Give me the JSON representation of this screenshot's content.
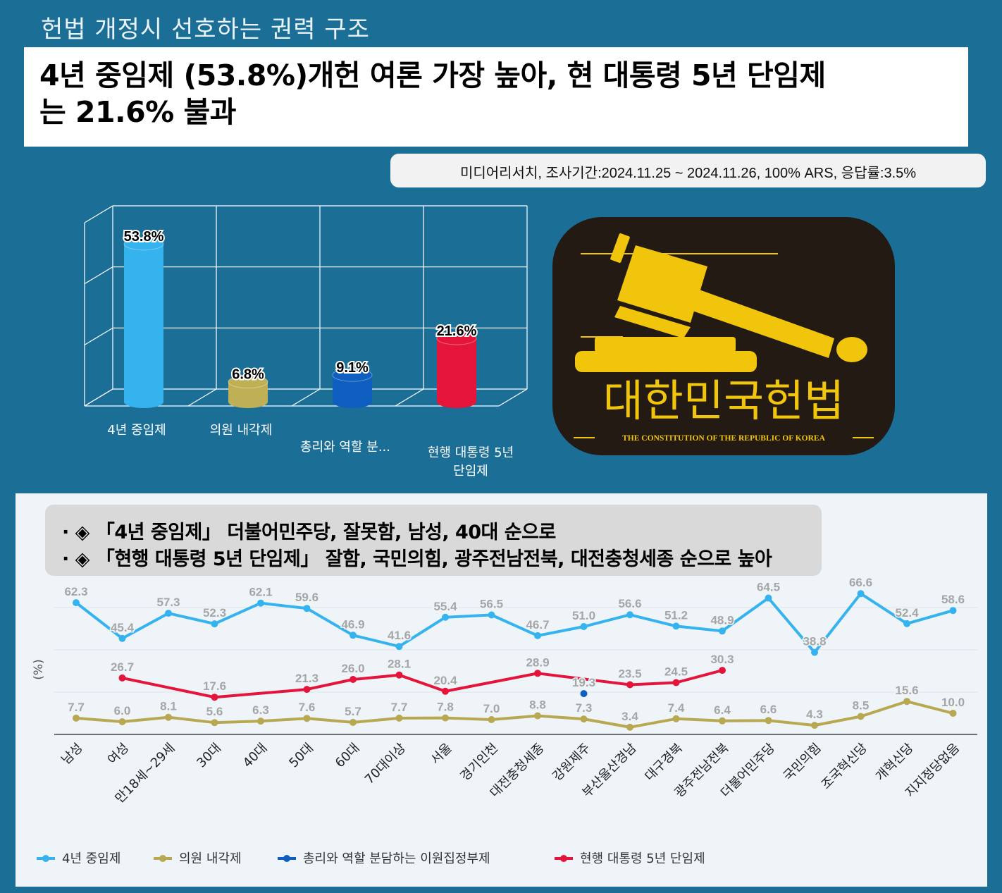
{
  "header": {
    "kicker": "헌법 개정시 선호하는 권력 구조",
    "headline_line1": "4년 중임제 (53.8%)개헌 여론 가장 높아, 현 대통령 5년 단임제",
    "headline_line2": "는 21.6% 불과",
    "source": "미디어리서치, 조사기간:2024.11.25 ~ 2024.11.26, 100% ARS, 응답률:3.5%"
  },
  "emblem": {
    "title": "대한민국헌법",
    "subtitle": "THE CONSTITUTION OF THE REPUBLIC OF KOREA",
    "icon": "gavel-icon",
    "color": "#f2c50d"
  },
  "summary": {
    "line1": "· ◈ 「4년 중임제」 더불어민주당, 잘못함, 남성, 40대 순으로",
    "line2": "· ◈ 「현행 대통령 5년 단임제」 잘함, 국민의힘, 광주전남전북, 대전충청세종 순으로 높아"
  },
  "chart_data": [
    {
      "type": "bar",
      "categories": [
        "4년 중임제",
        "의원 내각제",
        "총리와 역할 분...",
        "현행 대통령 5년 단임제"
      ],
      "category_lines": [
        [
          "4년 중임제"
        ],
        [
          "의원 내각제"
        ],
        [
          "총리와 역할 분..."
        ],
        [
          "현행 대통령 5년",
          "단임제"
        ]
      ],
      "values": [
        53.8,
        6.8,
        9.1,
        21.6
      ],
      "labels": [
        "53.8%",
        "6.8%",
        "9.1%",
        "21.6%"
      ],
      "colors": [
        "#35b3ee",
        "#c0b055",
        "#0f5fc0",
        "#e4143a"
      ],
      "ylim": [
        0,
        60
      ],
      "grid": true
    },
    {
      "type": "line",
      "ylabel": "(%)",
      "categories": [
        "남성",
        "여성",
        "만18세~29세",
        "30대",
        "40대",
        "50대",
        "60대",
        "70대이상",
        "서울",
        "경기인천",
        "대전충청세종",
        "강원제주",
        "부산울산경남",
        "대구경북",
        "광주전남전북",
        "더불어민주당",
        "국민의힘",
        "조국혁신당",
        "개혁신당",
        "지지정당없음"
      ],
      "ylim": [
        0,
        80
      ],
      "series": [
        {
          "name": "4년 중임제",
          "color": "#35b3ee",
          "values": [
            62.3,
            45.4,
            57.3,
            52.3,
            62.1,
            59.6,
            46.9,
            41.6,
            55.4,
            56.5,
            46.7,
            51.0,
            56.6,
            51.2,
            48.9,
            64.5,
            38.8,
            66.6,
            52.4,
            58.6
          ]
        },
        {
          "name": "의원 내각제",
          "color": "#b8a852",
          "values": [
            7.7,
            6.0,
            8.1,
            5.6,
            6.3,
            7.6,
            5.7,
            7.7,
            7.8,
            7.0,
            8.8,
            7.3,
            3.4,
            7.4,
            6.4,
            6.6,
            4.3,
            8.5,
            15.6,
            10.0
          ]
        },
        {
          "name": "총리와 역할 분담하는 이원집정부제",
          "color": "#0f5fc0",
          "values": [
            null,
            null,
            null,
            null,
            null,
            null,
            null,
            null,
            null,
            null,
            null,
            19.3,
            null,
            null,
            null,
            null,
            null,
            null,
            null,
            null
          ]
        },
        {
          "name": "현행 대통령 5년 단임제",
          "color": "#e4143a",
          "values": [
            null,
            26.7,
            null,
            17.6,
            null,
            21.3,
            26.0,
            28.1,
            20.4,
            null,
            28.9,
            null,
            23.5,
            24.5,
            30.3,
            null,
            null,
            null,
            null,
            null
          ]
        }
      ],
      "grid": true,
      "legend": "bottom"
    }
  ]
}
